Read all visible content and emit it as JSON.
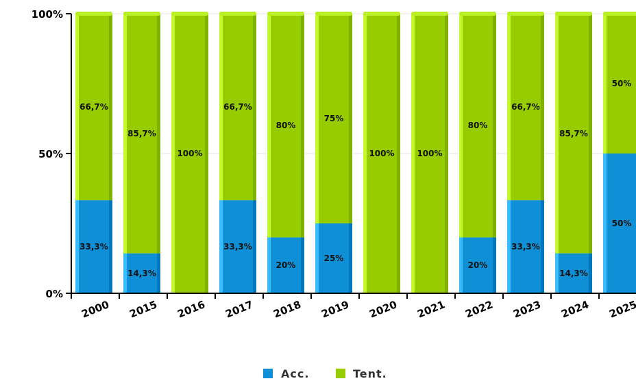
{
  "chart_data": {
    "type": "bar",
    "stacked": true,
    "percent": true,
    "categories": [
      "2000",
      "2015",
      "2016",
      "2017",
      "2018",
      "2019",
      "2020",
      "2021",
      "2022",
      "2023",
      "2024",
      "2025"
    ],
    "series": [
      {
        "name": "Acc.",
        "color": "#0e8fd6",
        "values": [
          33.3,
          14.3,
          0,
          33.3,
          20,
          25,
          0,
          0,
          20,
          33.3,
          14.3,
          50
        ],
        "labels": [
          "33,3%",
          "14,3%",
          "",
          "33,3%",
          "20%",
          "25%",
          "",
          "",
          "20%",
          "33,3%",
          "14,3%",
          "50%"
        ]
      },
      {
        "name": "Tent.",
        "color": "#96cc00",
        "values": [
          66.7,
          85.7,
          100,
          66.7,
          80,
          75,
          100,
          100,
          80,
          66.7,
          85.7,
          50
        ],
        "labels": [
          "66,7%",
          "85,7%",
          "100%",
          "66,7%",
          "80%",
          "75%",
          "100%",
          "100%",
          "80%",
          "66,7%",
          "85,7%",
          "50%"
        ]
      }
    ],
    "y_ticks": [
      "0%",
      "50%",
      "100%"
    ],
    "ylim": [
      0,
      100
    ],
    "grid": true,
    "legend_position": "bottom-center"
  }
}
